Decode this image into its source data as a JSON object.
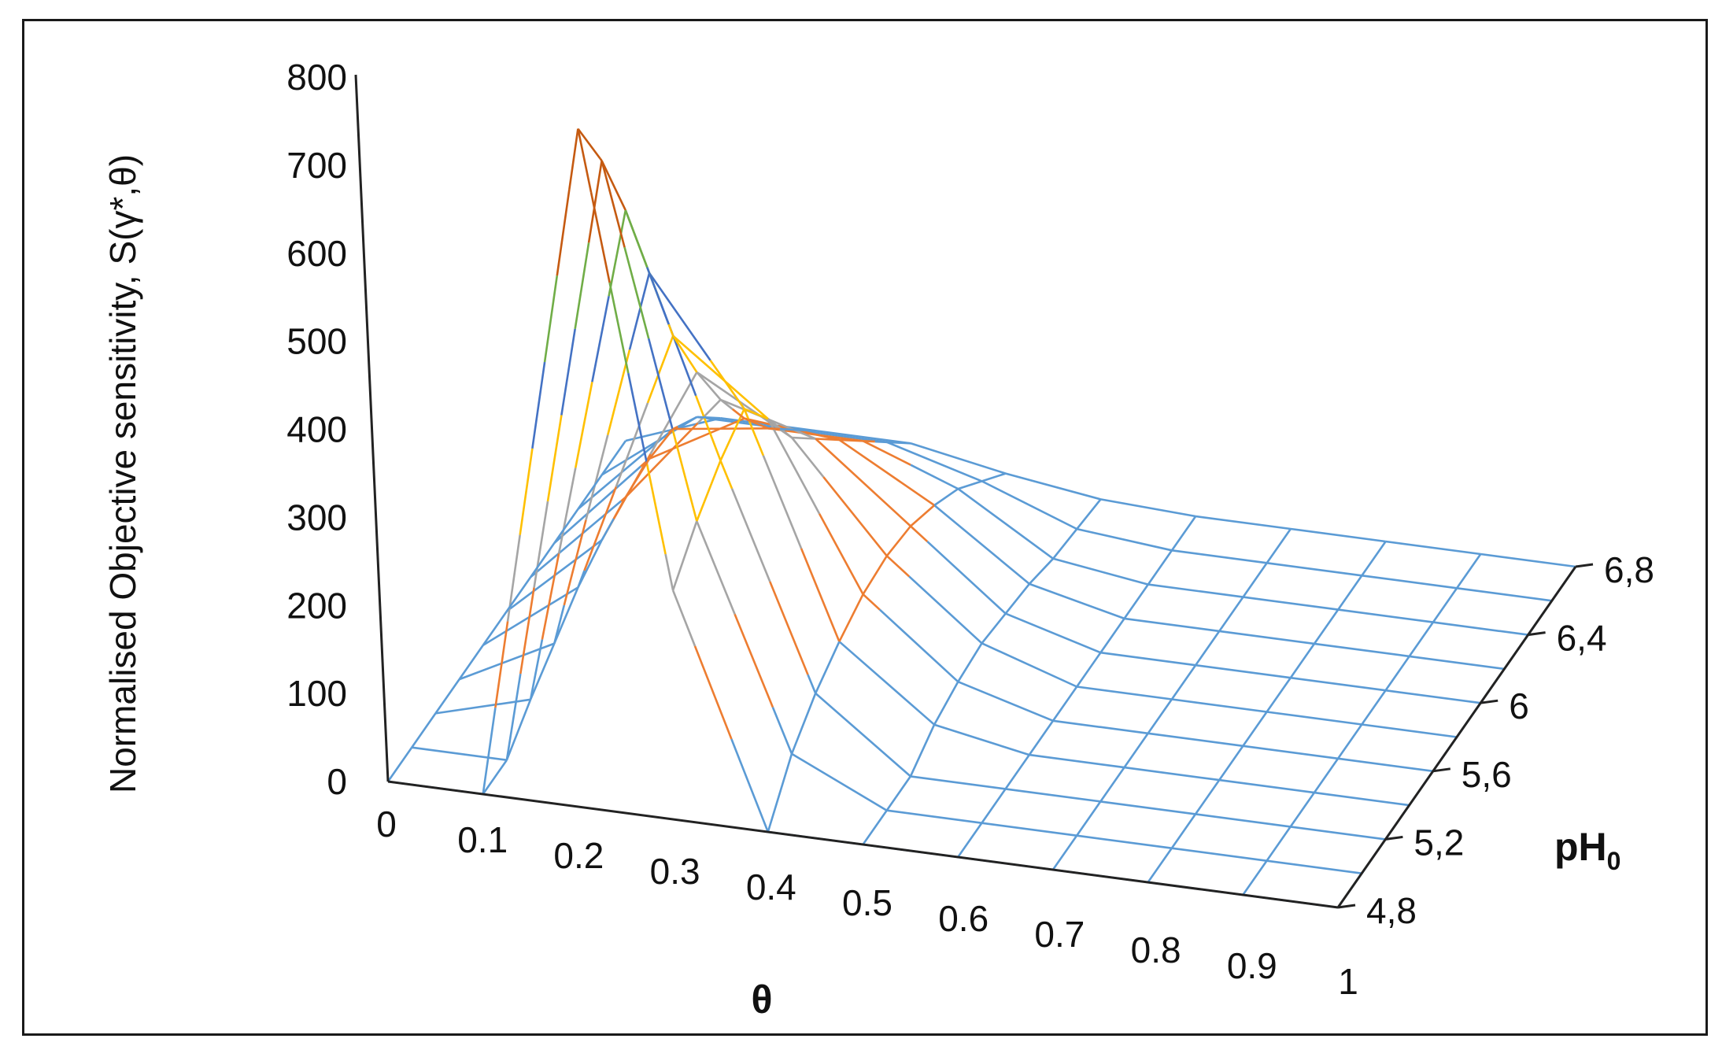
{
  "chart_data": {
    "type": "surface-wireframe",
    "title": "",
    "zlabel": "Normalised Objective sensitivity, S(γ*,θ)",
    "xlabel": "θ",
    "ylabel_base": "pH",
    "ylabel_sub": "0",
    "x_ticks": [
      "0",
      "0.1",
      "0.2",
      "0.3",
      "0.4",
      "0.5",
      "0.6",
      "0.7",
      "0.8",
      "0.9",
      "1"
    ],
    "y_ticks": [
      "4,8",
      "5,2",
      "5,6",
      "6",
      "6,4",
      "6,8"
    ],
    "z_ticks": [
      "0",
      "100",
      "200",
      "300",
      "400",
      "500",
      "600",
      "700",
      "800"
    ],
    "zlim": [
      0,
      800
    ],
    "x": [
      0,
      0.1,
      0.2,
      0.3,
      0.4,
      0.5,
      0.6,
      0.7,
      0.8,
      0.9,
      1
    ],
    "y": [
      4.8,
      5.0,
      5.2,
      5.4,
      5.6,
      5.8,
      6.0,
      6.2,
      6.4,
      6.6,
      6.8
    ],
    "z": [
      [
        0,
        0,
        770,
        260,
        0,
        0,
        0,
        0,
        0,
        0,
        0
      ],
      [
        0,
        0,
        695,
        300,
        50,
        0,
        0,
        0,
        0,
        0,
        0
      ],
      [
        0,
        30,
        600,
        330,
        80,
        0,
        0,
        0,
        0,
        0,
        0
      ],
      [
        0,
        55,
        490,
        350,
        100,
        20,
        0,
        0,
        0,
        0,
        0
      ],
      [
        0,
        80,
        380,
        300,
        115,
        30,
        0,
        0,
        0,
        0,
        0
      ],
      [
        0,
        95,
        300,
        240,
        120,
        35,
        0,
        0,
        0,
        0,
        0
      ],
      [
        0,
        105,
        230,
        200,
        115,
        30,
        0,
        0,
        0,
        0,
        0
      ],
      [
        0,
        110,
        170,
        160,
        100,
        25,
        0,
        0,
        0,
        0,
        0
      ],
      [
        0,
        105,
        120,
        120,
        80,
        15,
        0,
        0,
        0,
        0,
        0
      ],
      [
        0,
        80,
        80,
        80,
        50,
        10,
        0,
        0,
        0,
        0,
        0
      ],
      [
        0,
        40,
        40,
        40,
        20,
        5,
        0,
        0,
        0,
        0,
        0
      ]
    ],
    "band_colors": [
      "#5b9bd5",
      "#ed7d31",
      "#a5a5a5",
      "#ffc000",
      "#4472c4",
      "#70ad47",
      "#c55a11"
    ],
    "band_step": 100,
    "grid": false,
    "legend": "none"
  }
}
